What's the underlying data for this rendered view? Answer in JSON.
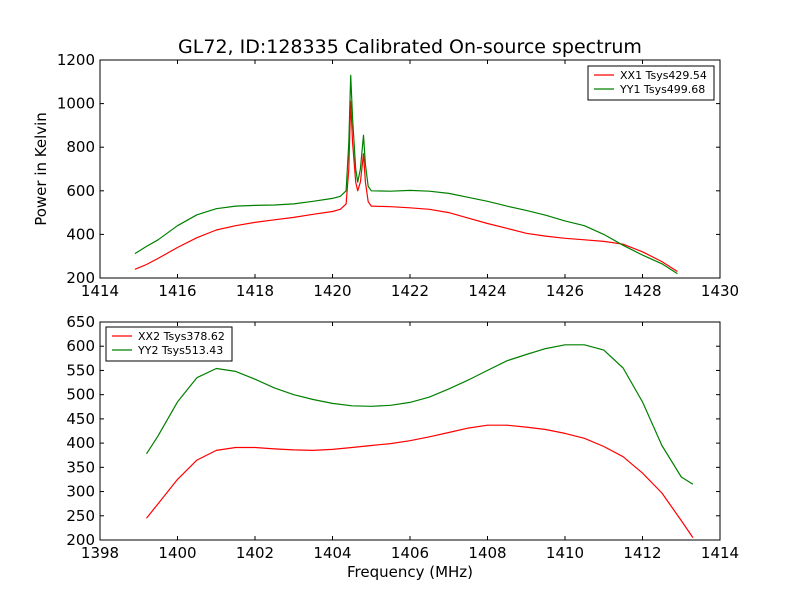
{
  "figure": {
    "title": "GL72, ID:128335 Calibrated On-source spectrum"
  },
  "chart_data": [
    {
      "type": "line",
      "title": "GL72, ID:128335 Calibrated On-source spectrum",
      "xlabel": "",
      "ylabel": "Power in Kelvin",
      "xlim": [
        1414,
        1430
      ],
      "ylim": [
        200,
        1200
      ],
      "xticks": [
        "1414",
        "1416",
        "1418",
        "1420",
        "1422",
        "1424",
        "1426",
        "1428",
        "1430"
      ],
      "yticks": [
        "200",
        "400",
        "600",
        "800",
        "1000",
        "1200"
      ],
      "legend_position": "top-right",
      "grid": false,
      "series": [
        {
          "name": "XX1 Tsys429.54",
          "color": "#ff0000",
          "points": [
            [
              1414.9,
              240
            ],
            [
              1415.2,
              262
            ],
            [
              1415.5,
              290
            ],
            [
              1416.0,
              340
            ],
            [
              1416.5,
              385
            ],
            [
              1417.0,
              420
            ],
            [
              1417.5,
              440
            ],
            [
              1418.0,
              455
            ],
            [
              1418.5,
              467
            ],
            [
              1419.0,
              478
            ],
            [
              1419.5,
              492
            ],
            [
              1420.0,
              505
            ],
            [
              1420.2,
              515
            ],
            [
              1420.35,
              540
            ],
            [
              1420.42,
              700
            ],
            [
              1420.47,
              1010
            ],
            [
              1420.52,
              820
            ],
            [
              1420.6,
              640
            ],
            [
              1420.65,
              600
            ],
            [
              1420.72,
              640
            ],
            [
              1420.8,
              770
            ],
            [
              1420.85,
              640
            ],
            [
              1420.92,
              550
            ],
            [
              1421.0,
              530
            ],
            [
              1421.5,
              527
            ],
            [
              1422.0,
              522
            ],
            [
              1422.5,
              515
            ],
            [
              1423.0,
              500
            ],
            [
              1423.5,
              475
            ],
            [
              1424.0,
              450
            ],
            [
              1424.5,
              428
            ],
            [
              1425.0,
              405
            ],
            [
              1425.5,
              392
            ],
            [
              1426.0,
              382
            ],
            [
              1426.5,
              375
            ],
            [
              1427.0,
              368
            ],
            [
              1427.5,
              355
            ],
            [
              1428.0,
              320
            ],
            [
              1428.5,
              275
            ],
            [
              1428.9,
              230
            ]
          ]
        },
        {
          "name": "YY1 Tsys499.68",
          "color": "#008000",
          "points": [
            [
              1414.9,
              312
            ],
            [
              1415.2,
              345
            ],
            [
              1415.5,
              375
            ],
            [
              1416.0,
              440
            ],
            [
              1416.5,
              490
            ],
            [
              1417.0,
              518
            ],
            [
              1417.5,
              530
            ],
            [
              1418.0,
              533
            ],
            [
              1418.5,
              535
            ],
            [
              1419.0,
              540
            ],
            [
              1419.5,
              552
            ],
            [
              1420.0,
              565
            ],
            [
              1420.2,
              575
            ],
            [
              1420.35,
              600
            ],
            [
              1420.42,
              820
            ],
            [
              1420.47,
              1130
            ],
            [
              1420.52,
              930
            ],
            [
              1420.6,
              700
            ],
            [
              1420.65,
              640
            ],
            [
              1420.72,
              700
            ],
            [
              1420.8,
              855
            ],
            [
              1420.85,
              720
            ],
            [
              1420.92,
              620
            ],
            [
              1421.0,
              600
            ],
            [
              1421.5,
              598
            ],
            [
              1422.0,
              602
            ],
            [
              1422.5,
              598
            ],
            [
              1423.0,
              588
            ],
            [
              1423.5,
              570
            ],
            [
              1424.0,
              552
            ],
            [
              1424.5,
              530
            ],
            [
              1425.0,
              510
            ],
            [
              1425.5,
              488
            ],
            [
              1426.0,
              462
            ],
            [
              1426.5,
              440
            ],
            [
              1427.0,
              400
            ],
            [
              1427.5,
              350
            ],
            [
              1428.0,
              305
            ],
            [
              1428.5,
              265
            ],
            [
              1428.9,
              220
            ]
          ]
        }
      ]
    },
    {
      "type": "line",
      "title": "",
      "xlabel": "Frequency (MHz)",
      "ylabel": "",
      "xlim": [
        1398,
        1414
      ],
      "ylim": [
        200,
        650
      ],
      "xticks": [
        "1398",
        "1400",
        "1402",
        "1404",
        "1406",
        "1408",
        "1410",
        "1412",
        "1414"
      ],
      "yticks": [
        "200",
        "250",
        "300",
        "350",
        "400",
        "450",
        "500",
        "550",
        "600",
        "650"
      ],
      "legend_position": "top-left",
      "grid": false,
      "series": [
        {
          "name": "XX2 Tsys378.62",
          "color": "#ff0000",
          "points": [
            [
              1399.2,
              245
            ],
            [
              1399.5,
              275
            ],
            [
              1400.0,
              325
            ],
            [
              1400.5,
              365
            ],
            [
              1401.0,
              385
            ],
            [
              1401.5,
              391
            ],
            [
              1402.0,
              391
            ],
            [
              1402.5,
              388
            ],
            [
              1403.0,
              386
            ],
            [
              1403.5,
              385
            ],
            [
              1404.0,
              387
            ],
            [
              1404.5,
              391
            ],
            [
              1405.0,
              395
            ],
            [
              1405.5,
              399
            ],
            [
              1406.0,
              405
            ],
            [
              1406.5,
              413
            ],
            [
              1407.0,
              422
            ],
            [
              1407.5,
              431
            ],
            [
              1408.0,
              437
            ],
            [
              1408.5,
              437
            ],
            [
              1409.0,
              433
            ],
            [
              1409.5,
              428
            ],
            [
              1410.0,
              420
            ],
            [
              1410.5,
              410
            ],
            [
              1411.0,
              393
            ],
            [
              1411.5,
              372
            ],
            [
              1412.0,
              338
            ],
            [
              1412.5,
              297
            ],
            [
              1413.0,
              240
            ],
            [
              1413.3,
              205
            ]
          ]
        },
        {
          "name": "YY2 Tsys513.43",
          "color": "#008000",
          "points": [
            [
              1399.2,
              378
            ],
            [
              1399.5,
              415
            ],
            [
              1400.0,
              485
            ],
            [
              1400.5,
              535
            ],
            [
              1401.0,
              554
            ],
            [
              1401.5,
              548
            ],
            [
              1402.0,
              532
            ],
            [
              1402.5,
              514
            ],
            [
              1403.0,
              500
            ],
            [
              1403.5,
              490
            ],
            [
              1404.0,
              482
            ],
            [
              1404.5,
              477
            ],
            [
              1405.0,
              476
            ],
            [
              1405.5,
              478
            ],
            [
              1406.0,
              484
            ],
            [
              1406.5,
              495
            ],
            [
              1407.0,
              512
            ],
            [
              1407.5,
              530
            ],
            [
              1408.0,
              550
            ],
            [
              1408.5,
              570
            ],
            [
              1409.0,
              583
            ],
            [
              1409.5,
              595
            ],
            [
              1410.0,
              603
            ],
            [
              1410.5,
              603
            ],
            [
              1411.0,
              592
            ],
            [
              1411.5,
              555
            ],
            [
              1412.0,
              485
            ],
            [
              1412.5,
              395
            ],
            [
              1413.0,
              330
            ],
            [
              1413.3,
              315
            ]
          ]
        }
      ]
    }
  ]
}
